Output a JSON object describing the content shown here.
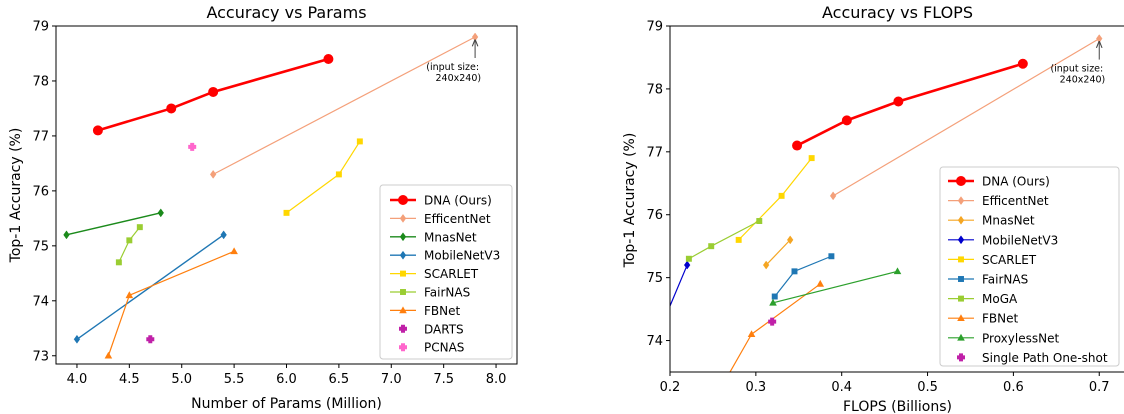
{
  "chart_data": [
    {
      "type": "line",
      "title": "Accuracy vs Params",
      "xlabel": "Number of Params (Million)",
      "ylabel": "Top-1 Accuracy (%)",
      "xlim": [
        3.8,
        8.2
      ],
      "ylim": [
        72.85,
        79.0
      ],
      "xticks": [
        4.0,
        4.5,
        5.0,
        5.5,
        6.0,
        6.5,
        7.0,
        7.5,
        8.0
      ],
      "xtick_labels": [
        "4.0",
        "4.5",
        "5.0",
        "5.5",
        "6.0",
        "6.5",
        "7.0",
        "7.5",
        "8.0"
      ],
      "yticks": [
        73,
        74,
        75,
        76,
        77,
        78,
        79
      ],
      "ytick_labels": [
        "73",
        "74",
        "75",
        "76",
        "77",
        "78",
        "79"
      ],
      "legend_position": "lower-right",
      "grid": false,
      "series": [
        {
          "name": "DNA (Ours)",
          "color": "#ff0000",
          "marker": "circle",
          "lw": 2.6,
          "ms": 4.5,
          "x": [
            4.2,
            4.9,
            5.3,
            6.4
          ],
          "y": [
            77.1,
            77.5,
            77.8,
            78.4
          ]
        },
        {
          "name": "EfficentNet",
          "color": "#f4a07a",
          "marker": "diamond",
          "lw": 1.2,
          "ms": 4,
          "x": [
            5.3,
            7.8
          ],
          "y": [
            76.3,
            78.8
          ]
        },
        {
          "name": "MnasNet",
          "color": "#1b8a1b",
          "marker": "diamond",
          "lw": 1.4,
          "ms": 4,
          "x": [
            3.9,
            4.8
          ],
          "y": [
            75.2,
            75.6
          ]
        },
        {
          "name": "MobileNetV3",
          "color": "#1f77b4",
          "marker": "diamond",
          "lw": 1.4,
          "ms": 4,
          "x": [
            4.0,
            5.4
          ],
          "y": [
            73.3,
            75.2
          ]
        },
        {
          "name": "SCARLET",
          "color": "#ffd700",
          "marker": "square",
          "lw": 1.2,
          "ms": 3.5,
          "x": [
            6.0,
            6.5,
            6.7
          ],
          "y": [
            75.6,
            76.3,
            76.9
          ]
        },
        {
          "name": "FairNAS",
          "color": "#9acd32",
          "marker": "square",
          "lw": 1.2,
          "ms": 3.5,
          "x": [
            4.4,
            4.5,
            4.6
          ],
          "y": [
            74.7,
            75.1,
            75.34
          ]
        },
        {
          "name": "FBNet",
          "color": "#ff7f0e",
          "marker": "triangle",
          "lw": 1.2,
          "ms": 4,
          "x": [
            4.3,
            4.5,
            5.5
          ],
          "y": [
            73.0,
            74.1,
            74.9
          ]
        },
        {
          "name": "DARTS",
          "color": "#c020a8",
          "marker": "plus",
          "lw": 0,
          "ms": 4,
          "x": [
            4.7
          ],
          "y": [
            73.3
          ]
        },
        {
          "name": "PCNAS",
          "color": "#ff66cc",
          "marker": "plus",
          "lw": 0,
          "ms": 4,
          "x": [
            5.1
          ],
          "y": [
            76.8
          ]
        }
      ],
      "annotations": [
        {
          "lines": [
            "(input size:",
            "240x240)"
          ],
          "point": [
            7.8,
            78.8
          ]
        }
      ]
    },
    {
      "type": "line",
      "title": "Accuracy vs FLOPS",
      "xlabel": "FLOPS (Billions)",
      "ylabel": "Top-1 Accuracy (%)",
      "xlim": [
        0.2,
        0.73
      ],
      "ylim": [
        73.5,
        79.0
      ],
      "xticks": [
        0.2,
        0.3,
        0.4,
        0.5,
        0.6,
        0.7
      ],
      "xtick_labels": [
        "0.2",
        "0.3",
        "0.4",
        "0.5",
        "0.6",
        "0.7"
      ],
      "yticks": [
        74,
        75,
        76,
        77,
        78,
        79
      ],
      "ytick_labels": [
        "74",
        "75",
        "76",
        "77",
        "78",
        "79"
      ],
      "legend_position": "lower-right",
      "grid": false,
      "series": [
        {
          "name": "DNA (Ours)",
          "color": "#ff0000",
          "marker": "circle",
          "lw": 2.6,
          "ms": 4.5,
          "x": [
            0.348,
            0.406,
            0.466,
            0.611
          ],
          "y": [
            77.1,
            77.5,
            77.8,
            78.4
          ]
        },
        {
          "name": "EfficentNet",
          "color": "#f4a07a",
          "marker": "diamond",
          "lw": 1.2,
          "ms": 4,
          "x": [
            0.39,
            0.7
          ],
          "y": [
            76.3,
            78.8
          ]
        },
        {
          "name": "MnasNet",
          "color": "#f5a623",
          "marker": "diamond",
          "lw": 1.2,
          "ms": 4,
          "x": [
            0.312,
            0.34
          ],
          "y": [
            75.2,
            75.6
          ]
        },
        {
          "name": "MobileNetV3",
          "color": "#0000cd",
          "marker": "diamond",
          "lw": 1.2,
          "ms": 4,
          "x": [
            0.18,
            0.22
          ],
          "y": [
            73.9,
            75.2
          ]
        },
        {
          "name": "SCARLET",
          "color": "#ffd700",
          "marker": "square",
          "lw": 1.2,
          "ms": 3.5,
          "x": [
            0.28,
            0.33,
            0.365
          ],
          "y": [
            75.6,
            76.3,
            76.9
          ]
        },
        {
          "name": "FairNAS",
          "color": "#1f77b4",
          "marker": "square",
          "lw": 1.2,
          "ms": 3.5,
          "x": [
            0.322,
            0.345,
            0.388
          ],
          "y": [
            74.7,
            75.1,
            75.34
          ]
        },
        {
          "name": "MoGA",
          "color": "#9acd32",
          "marker": "square",
          "lw": 1.2,
          "ms": 3.5,
          "x": [
            0.222,
            0.248,
            0.304
          ],
          "y": [
            75.3,
            75.5,
            75.9
          ]
        },
        {
          "name": "FBNet",
          "color": "#ff7f0e",
          "marker": "triangle",
          "lw": 1.2,
          "ms": 4,
          "x": [
            0.249,
            0.295,
            0.375
          ],
          "y": [
            73.0,
            74.1,
            74.9
          ]
        },
        {
          "name": "ProxylessNet",
          "color": "#2ca02c",
          "marker": "triangle",
          "lw": 1.2,
          "ms": 4,
          "x": [
            0.32,
            0.465
          ],
          "y": [
            74.6,
            75.1
          ]
        },
        {
          "name": "Single Path One-shot",
          "color": "#c020a8",
          "marker": "plus",
          "lw": 0,
          "ms": 4,
          "x": [
            0.319
          ],
          "y": [
            74.3
          ]
        }
      ],
      "annotations": [
        {
          "lines": [
            "(input size:",
            "240x240)"
          ],
          "point": [
            0.7,
            78.8
          ]
        }
      ]
    }
  ]
}
